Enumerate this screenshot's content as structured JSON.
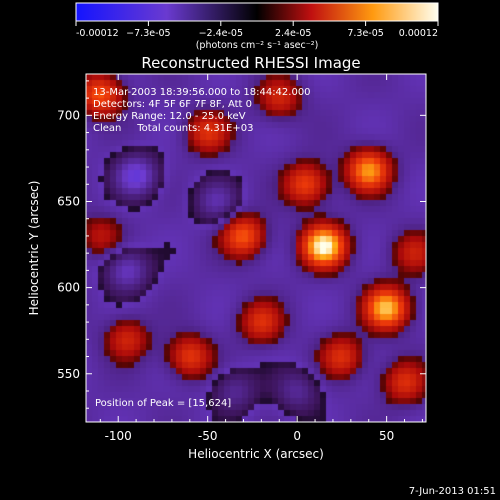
{
  "colorbar": {
    "ticks": [
      "-0.00012",
      "−7.3e-05",
      "−2.4e-05",
      "2.4e-05",
      "7.3e-05",
      "0.00012"
    ],
    "units": "(photons cm⁻² s⁻¹ asec⁻²)",
    "colors": {
      "low": "#1a1aff",
      "mid_low": "#7a3fbf",
      "zero": "#000000",
      "mid_high": "#e03010",
      "high": "#ffd020",
      "max": "#fffff0"
    }
  },
  "plot": {
    "title": "Reconstructed RHESSI Image",
    "xlabel": "Heliocentric X (arcsec)",
    "ylabel": "Heliocentric Y (arcsec)",
    "xlim": [
      -118,
      72
    ],
    "ylim": [
      522,
      724
    ],
    "xticks": [
      -100,
      -50,
      0,
      50
    ],
    "yticks": [
      550,
      600,
      650,
      700
    ],
    "info_lines": [
      "13-Mar-2003 18:39:56.000 to 18:44:42.000",
      "Detectors: 4F 5F 6F 7F 8F, Att 0",
      "Energy Range: 12.0 - 25.0 keV",
      "Clean     Total counts: 4.31E+03"
    ],
    "peak_text": "Position of Peak = [15,624]"
  },
  "footer": {
    "date": "7-Jun-2013 01:51"
  },
  "chart_data": {
    "type": "heatmap",
    "title": "Reconstructed RHESSI Image",
    "xlabel": "Heliocentric X (arcsec)",
    "ylabel": "Heliocentric Y (arcsec)",
    "xlim": [
      -118,
      72
    ],
    "ylim": [
      522,
      724
    ],
    "colorscale_range": [
      -0.00012,
      0.00012
    ],
    "peak_position": [
      15,
      624
    ],
    "sources": [
      {
        "x": 15,
        "y": 624,
        "amplitude": 1.0
      },
      {
        "x": 50,
        "y": 588,
        "amplitude": 0.85
      },
      {
        "x": 40,
        "y": 668,
        "amplitude": 0.75
      },
      {
        "x": -30,
        "y": 630,
        "amplitude": 0.6
      },
      {
        "x": 5,
        "y": 660,
        "amplitude": 0.55
      },
      {
        "x": -60,
        "y": 560,
        "amplitude": 0.5
      },
      {
        "x": -110,
        "y": 712,
        "amplitude": 0.6
      },
      {
        "x": 60,
        "y": 545,
        "amplitude": 0.45
      },
      {
        "x": -20,
        "y": 580,
        "amplitude": 0.45
      },
      {
        "x": -50,
        "y": 690,
        "amplitude": 0.45
      },
      {
        "x": -95,
        "y": 570,
        "amplitude": 0.4
      },
      {
        "x": 25,
        "y": 560,
        "amplitude": 0.45
      },
      {
        "x": -10,
        "y": 710,
        "amplitude": 0.4
      },
      {
        "x": 65,
        "y": 620,
        "amplitude": 0.35
      },
      {
        "x": -110,
        "y": 630,
        "amplitude": 0.3
      }
    ],
    "negative_regions": [
      {
        "x": -90,
        "y": 665,
        "amplitude": -0.55
      },
      {
        "x": -95,
        "y": 610,
        "amplitude": -0.45
      },
      {
        "x": -45,
        "y": 650,
        "amplitude": -0.35
      },
      {
        "x": 0,
        "y": 540,
        "amplitude": -0.3
      },
      {
        "x": -35,
        "y": 540,
        "amplitude": -0.3
      }
    ]
  }
}
